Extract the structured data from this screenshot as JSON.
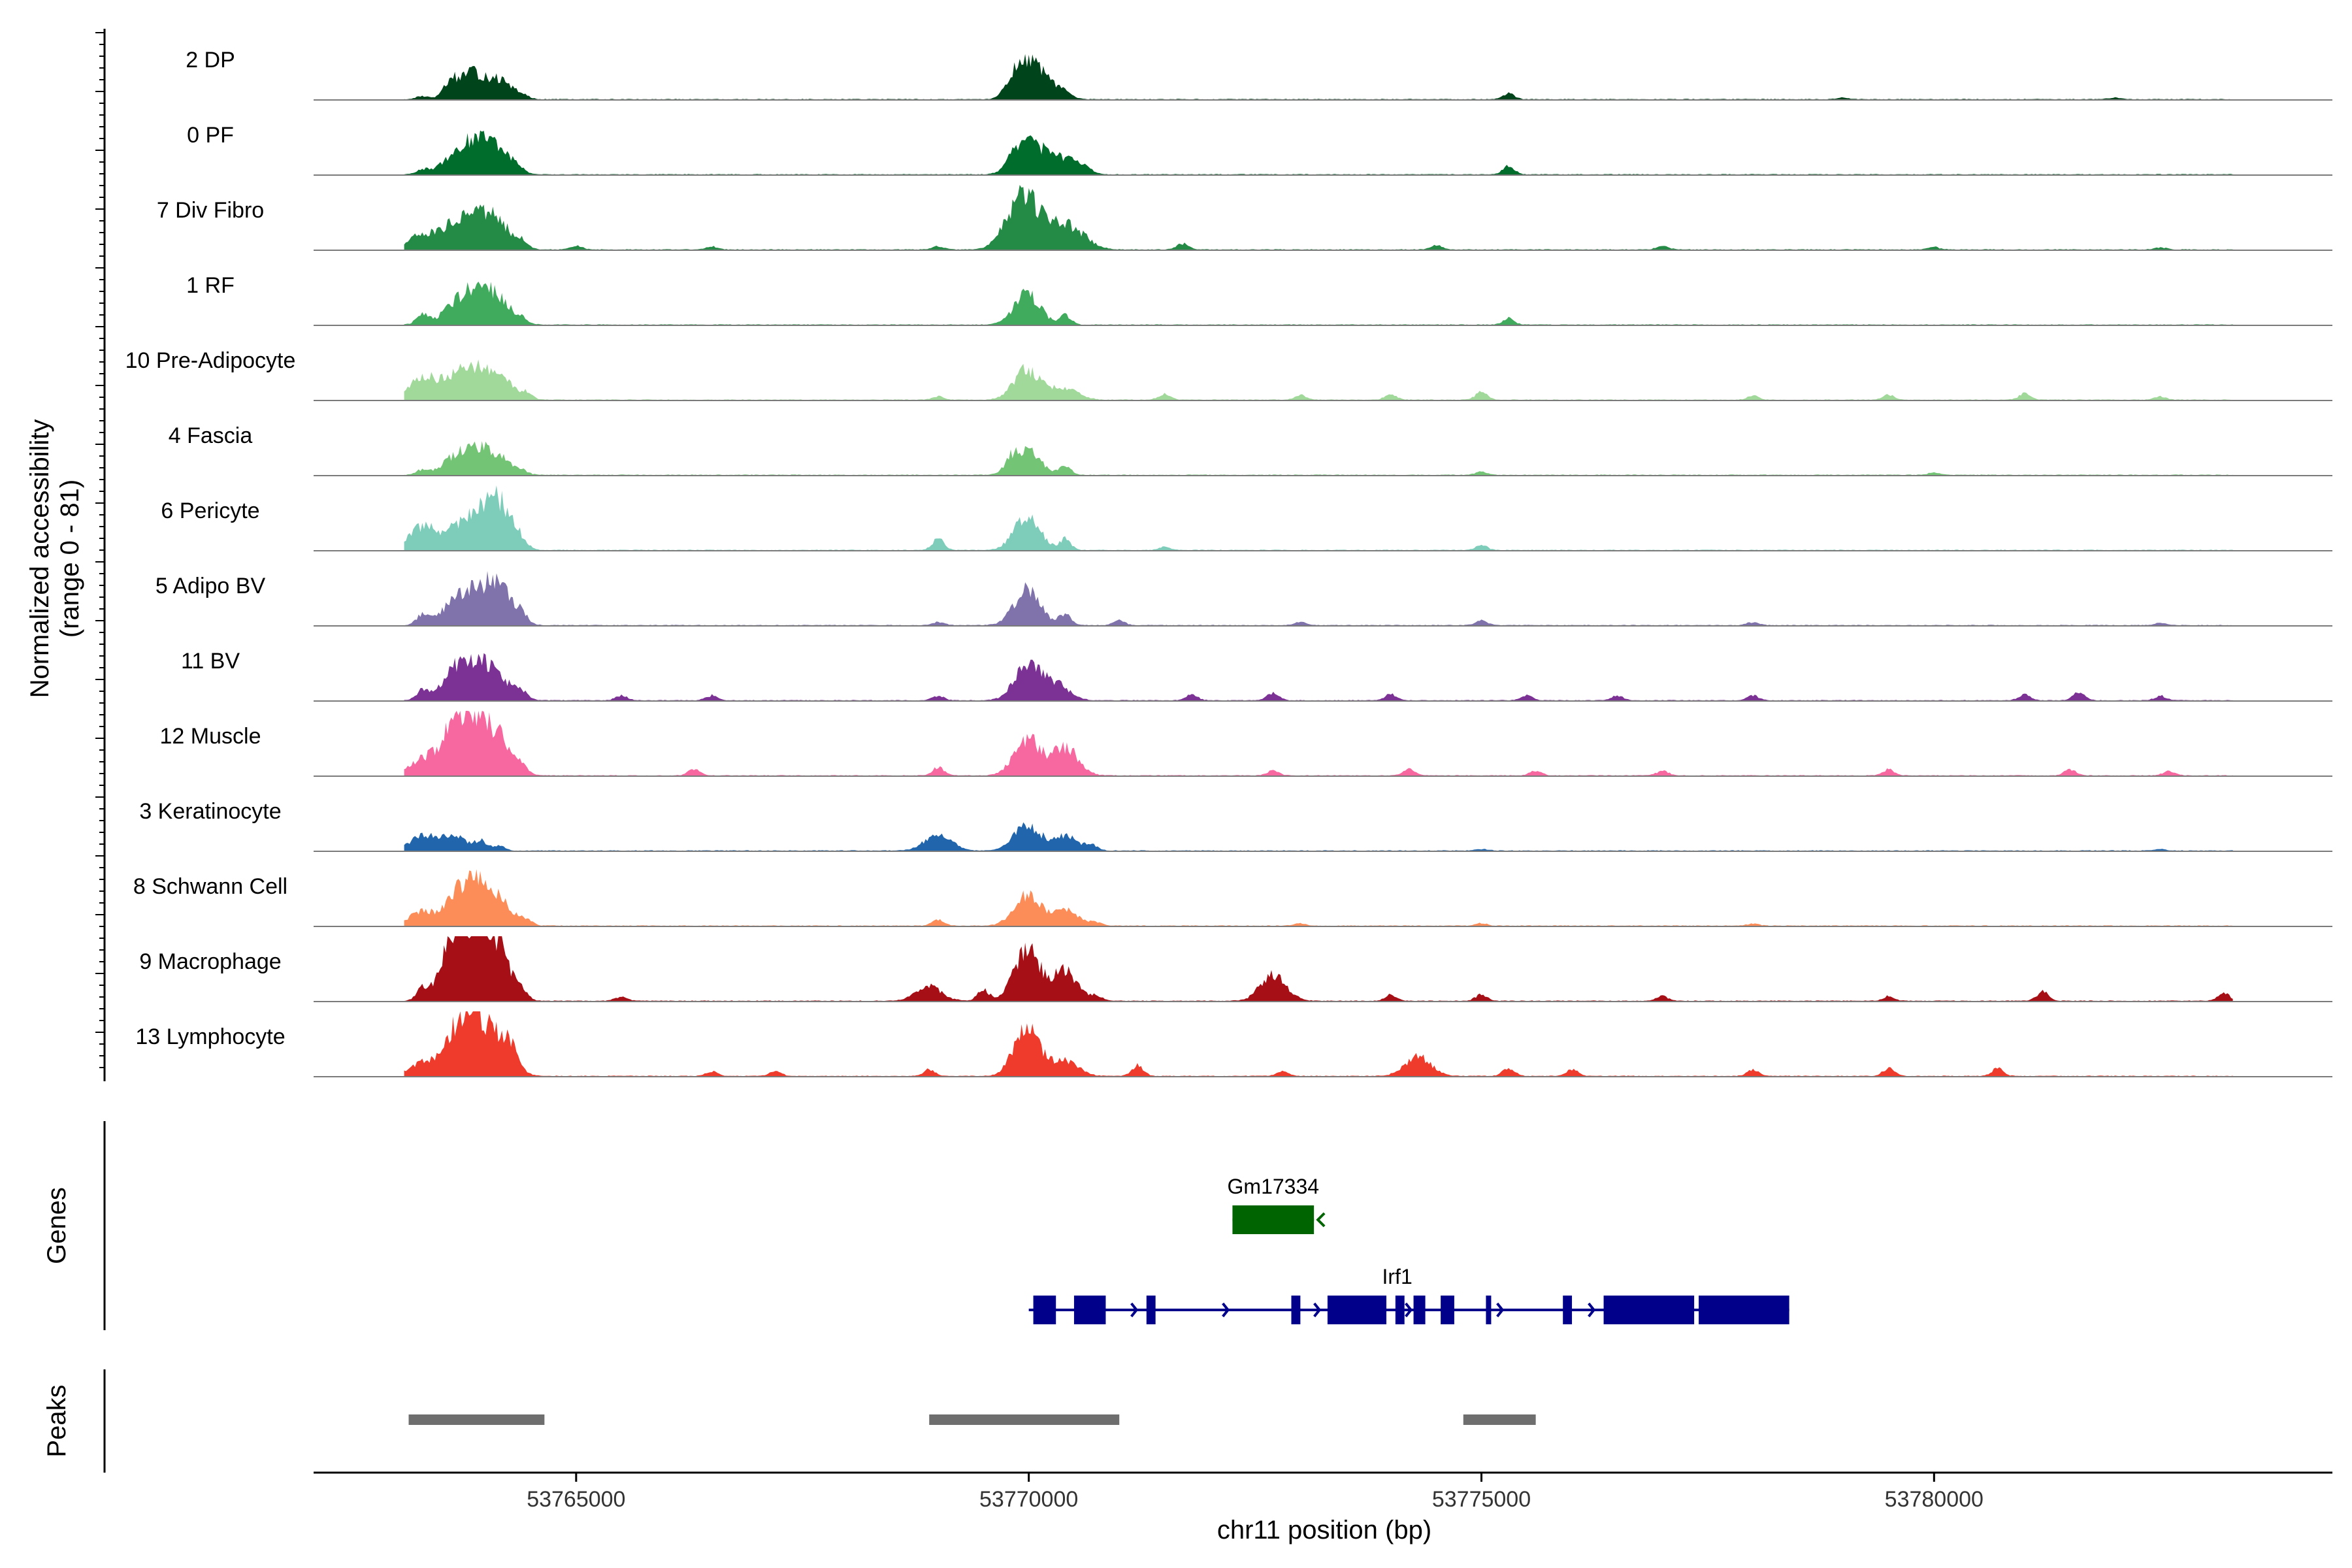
{
  "chart_data": {
    "type": "area",
    "title": "",
    "tracks_ylabel": "Normalized accessibility",
    "tracks_ylabel_range": "(range 0 - 81)",
    "ylim": [
      0,
      81
    ],
    "xlabel": "chr11 position (bp)",
    "xlim": [
      53762100,
      53784400
    ],
    "x_ticks": [
      53765000,
      53770000,
      53775000,
      53780000
    ],
    "x_tick_labels": [
      "53765000",
      "53770000",
      "53775000",
      "53780000"
    ],
    "region": [
      53763100,
      53783300
    ],
    "tracks": [
      {
        "name": "2 DP",
        "color": "#00441b",
        "peaks": [
          [
            53763300,
            4
          ],
          [
            53763600,
            12
          ],
          [
            53763750,
            20
          ],
          [
            53763900,
            17
          ],
          [
            53764150,
            22
          ],
          [
            53764400,
            4
          ],
          [
            53769800,
            14
          ],
          [
            53769980,
            42
          ],
          [
            53770200,
            17
          ],
          [
            53770400,
            6
          ],
          [
            53775300,
            8
          ],
          [
            53779000,
            2
          ],
          [
            53782000,
            2
          ]
        ]
      },
      {
        "name": "0 PF",
        "color": "#006d2c",
        "peaks": [
          [
            53763300,
            6
          ],
          [
            53763650,
            22
          ],
          [
            53763900,
            36
          ],
          [
            53764150,
            28
          ],
          [
            53764350,
            5
          ],
          [
            53769800,
            14
          ],
          [
            53769980,
            42
          ],
          [
            53770200,
            12
          ],
          [
            53770400,
            22
          ],
          [
            53770650,
            5
          ],
          [
            53775300,
            10
          ]
        ]
      },
      {
        "name": "7 Div Fibro",
        "color": "#238b45",
        "peaks": [
          [
            53763300,
            20
          ],
          [
            53763650,
            28
          ],
          [
            53763900,
            40
          ],
          [
            53764150,
            30
          ],
          [
            53764400,
            8
          ],
          [
            53765000,
            5
          ],
          [
            53766500,
            4
          ],
          [
            53769000,
            4
          ],
          [
            53769800,
            24
          ],
          [
            53769980,
            58
          ],
          [
            53770300,
            30
          ],
          [
            53770550,
            18
          ],
          [
            53771700,
            8
          ],
          [
            53774500,
            6
          ],
          [
            53777000,
            5
          ],
          [
            53780000,
            3
          ],
          [
            53782500,
            3
          ]
        ]
      },
      {
        "name": "1 RF",
        "color": "#41ab5d",
        "peaks": [
          [
            53763300,
            14
          ],
          [
            53763650,
            22
          ],
          [
            53763900,
            40
          ],
          [
            53764150,
            28
          ],
          [
            53764400,
            6
          ],
          [
            53769980,
            40
          ],
          [
            53770400,
            12
          ],
          [
            53775300,
            8
          ]
        ]
      },
      {
        "name": "10 Pre-Adipocyte",
        "color": "#a1d99b",
        "peaks": [
          [
            53763300,
            30
          ],
          [
            53763650,
            25
          ],
          [
            53763900,
            32
          ],
          [
            53764150,
            28
          ],
          [
            53764450,
            8
          ],
          [
            53769000,
            4
          ],
          [
            53769980,
            38
          ],
          [
            53770400,
            16
          ],
          [
            53771500,
            8
          ],
          [
            53773000,
            6
          ],
          [
            53774000,
            8
          ],
          [
            53775000,
            10
          ],
          [
            53778000,
            5
          ],
          [
            53779500,
            6
          ],
          [
            53781000,
            8
          ],
          [
            53782500,
            4
          ]
        ]
      },
      {
        "name": "4 Fascia",
        "color": "#74c476",
        "peaks": [
          [
            53763300,
            6
          ],
          [
            53763650,
            20
          ],
          [
            53763900,
            28
          ],
          [
            53764150,
            20
          ],
          [
            53764400,
            4
          ],
          [
            53769800,
            12
          ],
          [
            53769980,
            32
          ],
          [
            53770400,
            12
          ],
          [
            53775000,
            4
          ],
          [
            53780000,
            3
          ]
        ]
      },
      {
        "name": "6 Pericyte",
        "color": "#7ecdbb",
        "peaks": [
          [
            53763300,
            30
          ],
          [
            53763650,
            22
          ],
          [
            53763900,
            34
          ],
          [
            53764150,
            58
          ],
          [
            53764400,
            8
          ],
          [
            53769000,
            14
          ],
          [
            53769980,
            42
          ],
          [
            53770400,
            14
          ],
          [
            53771500,
            4
          ],
          [
            53775000,
            6
          ]
        ]
      },
      {
        "name": "5 Adipo BV",
        "color": "#8073ac",
        "peaks": [
          [
            53763300,
            14
          ],
          [
            53763650,
            28
          ],
          [
            53763900,
            34
          ],
          [
            53764150,
            48
          ],
          [
            53764400,
            10
          ],
          [
            53769000,
            4
          ],
          [
            53769980,
            46
          ],
          [
            53770400,
            14
          ],
          [
            53771000,
            6
          ],
          [
            53773000,
            4
          ],
          [
            53775000,
            6
          ],
          [
            53778000,
            4
          ],
          [
            53782500,
            3
          ]
        ]
      },
      {
        "name": "11 BV",
        "color": "#7b3294",
        "peaks": [
          [
            53763300,
            12
          ],
          [
            53763650,
            34
          ],
          [
            53763900,
            42
          ],
          [
            53764150,
            26
          ],
          [
            53764400,
            8
          ],
          [
            53765500,
            6
          ],
          [
            53766500,
            6
          ],
          [
            53769000,
            6
          ],
          [
            53769980,
            44
          ],
          [
            53770300,
            20
          ],
          [
            53771800,
            8
          ],
          [
            53772700,
            10
          ],
          [
            53774000,
            8
          ],
          [
            53775500,
            6
          ],
          [
            53776500,
            6
          ],
          [
            53778000,
            6
          ],
          [
            53781000,
            8
          ],
          [
            53781600,
            10
          ],
          [
            53782500,
            6
          ]
        ]
      },
      {
        "name": "12 Muscle",
        "color": "#f768a1",
        "peaks": [
          [
            53763300,
            20
          ],
          [
            53763650,
            62
          ],
          [
            53763900,
            58
          ],
          [
            53764150,
            42
          ],
          [
            53764400,
            8
          ],
          [
            53766300,
            8
          ],
          [
            53769000,
            10
          ],
          [
            53769980,
            48
          ],
          [
            53770400,
            36
          ],
          [
            53772700,
            6
          ],
          [
            53774200,
            8
          ],
          [
            53775600,
            6
          ],
          [
            53777000,
            6
          ],
          [
            53779500,
            8
          ],
          [
            53781500,
            8
          ],
          [
            53782600,
            6
          ]
        ]
      },
      {
        "name": "3 Keratinocyte",
        "color": "#2166ac",
        "peaks": [
          [
            53763300,
            18
          ],
          [
            53763650,
            20
          ],
          [
            53763950,
            12
          ],
          [
            53764150,
            6
          ],
          [
            53769000,
            22
          ],
          [
            53769980,
            32
          ],
          [
            53770400,
            18
          ],
          [
            53770700,
            6
          ],
          [
            53775000,
            2
          ],
          [
            53782500,
            2
          ]
        ]
      },
      {
        "name": "8 Schwann Cell",
        "color": "#fc8d59",
        "peaks": [
          [
            53763300,
            18
          ],
          [
            53763700,
            34
          ],
          [
            53763900,
            40
          ],
          [
            53764150,
            30
          ],
          [
            53764450,
            6
          ],
          [
            53769000,
            8
          ],
          [
            53769980,
            38
          ],
          [
            53770400,
            22
          ],
          [
            53770750,
            4
          ],
          [
            53773000,
            3
          ],
          [
            53775000,
            3
          ],
          [
            53778000,
            3
          ]
        ]
      },
      {
        "name": "9 Macrophage",
        "color": "#a50f15",
        "peaks": [
          [
            53763300,
            14
          ],
          [
            53763650,
            72
          ],
          [
            53763850,
            62
          ],
          [
            53764100,
            76
          ],
          [
            53764400,
            12
          ],
          [
            53765500,
            6
          ],
          [
            53768900,
            18
          ],
          [
            53769500,
            14
          ],
          [
            53769980,
            68
          ],
          [
            53770400,
            38
          ],
          [
            53770750,
            6
          ],
          [
            53772700,
            32
          ],
          [
            53774000,
            8
          ],
          [
            53775000,
            8
          ],
          [
            53777000,
            6
          ],
          [
            53779500,
            6
          ],
          [
            53781200,
            12
          ],
          [
            53783200,
            10
          ]
        ]
      },
      {
        "name": "13 Lymphocyte",
        "color": "#ef3b2c",
        "peaks": [
          [
            53763300,
            16
          ],
          [
            53763650,
            36
          ],
          [
            53763850,
            72
          ],
          [
            53764150,
            48
          ],
          [
            53764300,
            14
          ],
          [
            53766500,
            6
          ],
          [
            53767200,
            6
          ],
          [
            53768900,
            8
          ],
          [
            53769980,
            62
          ],
          [
            53770400,
            20
          ],
          [
            53771200,
            14
          ],
          [
            53772800,
            6
          ],
          [
            53774300,
            24
          ],
          [
            53775300,
            10
          ],
          [
            53776000,
            8
          ],
          [
            53778000,
            8
          ],
          [
            53779500,
            10
          ],
          [
            53780700,
            10
          ]
        ]
      }
    ],
    "genes_label": "Genes",
    "genes": [
      {
        "name": "Gm17334",
        "color": "#006400",
        "strand": "-",
        "start": 53772250,
        "end": 53773150,
        "exons": [
          [
            53772250,
            53773150
          ]
        ]
      },
      {
        "name": "Irf1",
        "color": "#00008b",
        "strand": "+",
        "start": 53770000,
        "end": 53778400,
        "exons": [
          [
            53770050,
            53770300
          ],
          [
            53770500,
            53770850
          ],
          [
            53771300,
            53771400
          ],
          [
            53772900,
            53773000
          ],
          [
            53773300,
            53773950
          ],
          [
            53774050,
            53774150
          ],
          [
            53774250,
            53774380
          ],
          [
            53774550,
            53774700
          ],
          [
            53775050,
            53775100
          ],
          [
            53775900,
            53776000
          ],
          [
            53776350,
            53777350
          ],
          [
            53777400,
            53778400
          ]
        ]
      }
    ],
    "peaks_label": "Peaks",
    "peaks_color": "#6e6e6e",
    "peak_regions": [
      [
        53763150,
        53764650
      ],
      [
        53768900,
        53771000
      ],
      [
        53774800,
        53775600
      ]
    ]
  }
}
